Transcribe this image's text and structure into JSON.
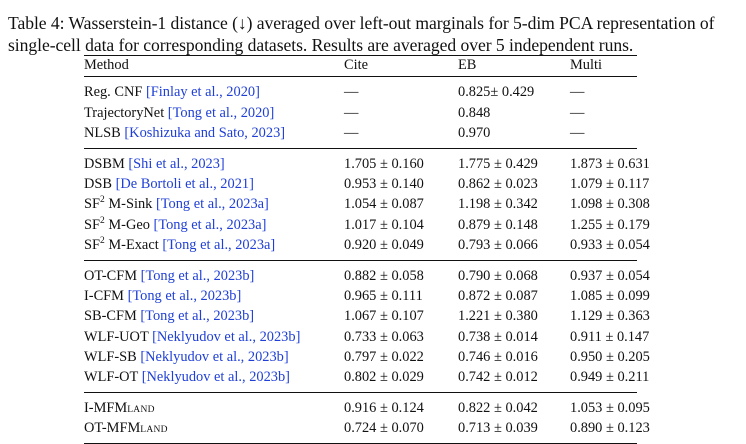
{
  "caption": "Table 4: Wasserstein-1 distance (↓) averaged over left-out marginals for 5-dim PCA representation of single-cell data for corresponding datasets. Results are averaged over 5 independent runs.",
  "columns": [
    "Method",
    "Cite",
    "EB",
    "Multi"
  ],
  "groups": [
    [
      {
        "name": "Reg. CNF ",
        "cite": "[Finlay et al., 2020]",
        "values": [
          "—",
          "0.825± 0.429",
          "—"
        ]
      },
      {
        "name": "TrajectoryNet ",
        "cite": "[Tong et al., 2020]",
        "values": [
          "—",
          "0.848",
          "—"
        ]
      },
      {
        "name": "NLSB ",
        "cite": "[Koshizuka and Sato, 2023]",
        "values": [
          "—",
          "0.970",
          "—"
        ]
      }
    ],
    [
      {
        "name": "DSBM ",
        "cite": "[Shi et al., 2023]",
        "values": [
          "1.705 ± 0.160",
          "1.775 ± 0.429",
          "1.873 ± 0.631"
        ]
      },
      {
        "name": "DSB ",
        "cite": "[De Bortoli et al., 2021]",
        "values": [
          "0.953 ± 0.140",
          "0.862 ± 0.023",
          "1.079 ± 0.117"
        ]
      },
      {
        "name": "SF",
        "sup": "2",
        "name_after": " M-Sink ",
        "cite": "[Tong et al., 2023a]",
        "values": [
          "1.054 ± 0.087",
          "1.198 ± 0.342",
          "1.098 ± 0.308"
        ]
      },
      {
        "name": "SF",
        "sup": "2",
        "name_after": " M-Geo ",
        "cite": "[Tong et al., 2023a]",
        "values": [
          "1.017 ± 0.104",
          "0.879 ± 0.148",
          "1.255 ± 0.179"
        ]
      },
      {
        "name": "SF",
        "sup": "2",
        "name_after": " M-Exact ",
        "cite": "[Tong et al., 2023a]",
        "values": [
          "0.920 ± 0.049",
          "0.793 ± 0.066",
          "0.933 ± 0.054"
        ]
      }
    ],
    [
      {
        "name": "OT-CFM ",
        "cite": "[Tong et al., 2023b]",
        "values": [
          "0.882 ± 0.058",
          "0.790 ± 0.068",
          "0.937 ± 0.054"
        ]
      },
      {
        "name": "I-CFM ",
        "cite": "[Tong et al., 2023b]",
        "values": [
          "0.965 ± 0.111",
          "0.872 ± 0.087",
          "1.085 ± 0.099"
        ]
      },
      {
        "name": "SB-CFM ",
        "cite": "[Tong et al., 2023b]",
        "values": [
          "1.067 ± 0.107",
          "1.221 ± 0.380",
          "1.129 ± 0.363"
        ]
      },
      {
        "name": "WLF-UOT ",
        "cite": "[Neklyudov et al., 2023b]",
        "values": [
          "0.733 ± 0.063",
          "0.738 ± 0.014",
          "0.911 ± 0.147"
        ]
      },
      {
        "name": "WLF-SB ",
        "cite": "[Neklyudov et al., 2023b]",
        "values": [
          "0.797 ± 0.022",
          "0.746 ± 0.016",
          "0.950 ± 0.205"
        ]
      },
      {
        "name": "WLF-OT ",
        "cite": "[Neklyudov et al., 2023b]",
        "values": [
          "0.802 ± 0.029",
          "0.742 ± 0.012",
          "0.949 ± 0.211"
        ]
      }
    ],
    [
      {
        "name": "I-MFM",
        "sub": "LAND",
        "values": [
          "0.916 ± 0.124",
          "0.822 ± 0.042",
          "1.053 ± 0.095"
        ]
      },
      {
        "name": "OT-MFM",
        "sub": "LAND",
        "values": [
          "0.724 ± 0.070",
          "0.713 ± 0.039",
          "0.890 ± 0.123"
        ]
      }
    ]
  ]
}
